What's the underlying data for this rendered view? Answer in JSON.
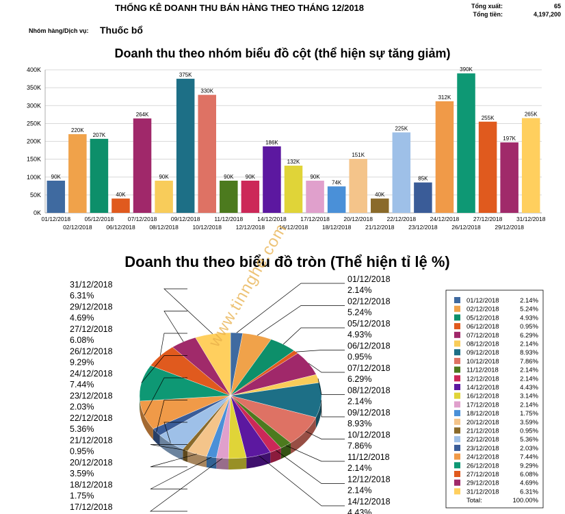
{
  "report": {
    "title": "THỐNG KÊ DOANH THU BÁN HÀNG THEO THÁNG 12/2018",
    "group_label": "Nhóm hàng/Dịch vụ:",
    "group_value": "Thuốc bổ",
    "total_export_label": "Tổng xuất:",
    "total_export_value": "65",
    "total_amount_label": "Tổng tiền:",
    "total_amount_value": "4,197,200"
  },
  "watermark": "www.tinnghe.com",
  "chart_data": [
    {
      "type": "bar",
      "title": "Doanh thu theo nhóm biểu đồ cột (thể hiện sự tăng giảm)",
      "categories": [
        "01/12/2018",
        "02/12/2018",
        "05/12/2018",
        "06/12/2018",
        "07/12/2018",
        "08/12/2018",
        "09/12/2018",
        "10/12/2018",
        "11/12/2018",
        "12/12/2018",
        "14/12/2018",
        "16/12/2018",
        "17/12/2018",
        "18/12/2018",
        "20/12/2018",
        "21/12/2018",
        "22/12/2018",
        "23/12/2018",
        "24/12/2018",
        "26/12/2018",
        "27/12/2018",
        "29/12/2018",
        "31/12/2018"
      ],
      "values": [
        90,
        220,
        207,
        40,
        264,
        90,
        375,
        330,
        90,
        90,
        186,
        132,
        90,
        74,
        151,
        40,
        225,
        85,
        312,
        390,
        255,
        197,
        265
      ],
      "value_labels": [
        "90K",
        "220K",
        "207K",
        "40K",
        "264K",
        "90K",
        "375K",
        "330K",
        "90K",
        "90K",
        "186K",
        "132K",
        "90K",
        "74K",
        "151K",
        "40K",
        "225K",
        "85K",
        "312K",
        "390K",
        "255K",
        "197K",
        "265K"
      ],
      "colors": [
        "#3f6aa0",
        "#f0a24a",
        "#0d8f6a",
        "#e05a1e",
        "#a0286a",
        "#f8cc5a",
        "#1d6f86",
        "#de7264",
        "#4c7a1e",
        "#cc2858",
        "#5c18a0",
        "#e0d438",
        "#e0a0cc",
        "#4a90d8",
        "#f4c48a",
        "#8a6a2a",
        "#9ec0e8",
        "#3a5c98",
        "#f09a48",
        "#0e9874",
        "#e05a1e",
        "#a02a6a",
        "#ffcf5e"
      ],
      "y_ticks": [
        "0K",
        "50K",
        "100K",
        "150K",
        "200K",
        "250K",
        "300K",
        "350K",
        "400K"
      ],
      "ylim": [
        0,
        400
      ],
      "grid": true
    },
    {
      "type": "pie",
      "title": "Doanh thu theo biểu đồ tròn (Thể hiện tỉ lệ %)",
      "categories": [
        "01/12/2018",
        "02/12/2018",
        "05/12/2018",
        "06/12/2018",
        "07/12/2018",
        "08/12/2018",
        "09/12/2018",
        "10/12/2018",
        "11/12/2018",
        "12/12/2018",
        "14/12/2018",
        "16/12/2018",
        "17/12/2018",
        "18/12/2018",
        "20/12/2018",
        "21/12/2018",
        "22/12/2018",
        "23/12/2018",
        "24/12/2018",
        "26/12/2018",
        "27/12/2018",
        "29/12/2018",
        "31/12/2018"
      ],
      "values": [
        2.14,
        5.24,
        4.93,
        0.95,
        6.29,
        2.14,
        8.93,
        7.86,
        2.14,
        2.14,
        4.43,
        3.14,
        2.14,
        1.75,
        3.59,
        0.95,
        5.36,
        2.03,
        7.44,
        9.29,
        6.08,
        4.69,
        6.31
      ],
      "percent_labels": [
        "2.14%",
        "5.24%",
        "4.93%",
        "0.95%",
        "6.29%",
        "2.14%",
        "8.93%",
        "7.86%",
        "2.14%",
        "2.14%",
        "4.43%",
        "3.14%",
        "2.14%",
        "1.75%",
        "3.59%",
        "0.95%",
        "5.36%",
        "2.03%",
        "7.44%",
        "9.29%",
        "6.08%",
        "4.69%",
        "6.31%"
      ],
      "legend_total_label": "Total:",
      "legend_total_value": "100.00%",
      "legend_position": "right"
    }
  ]
}
